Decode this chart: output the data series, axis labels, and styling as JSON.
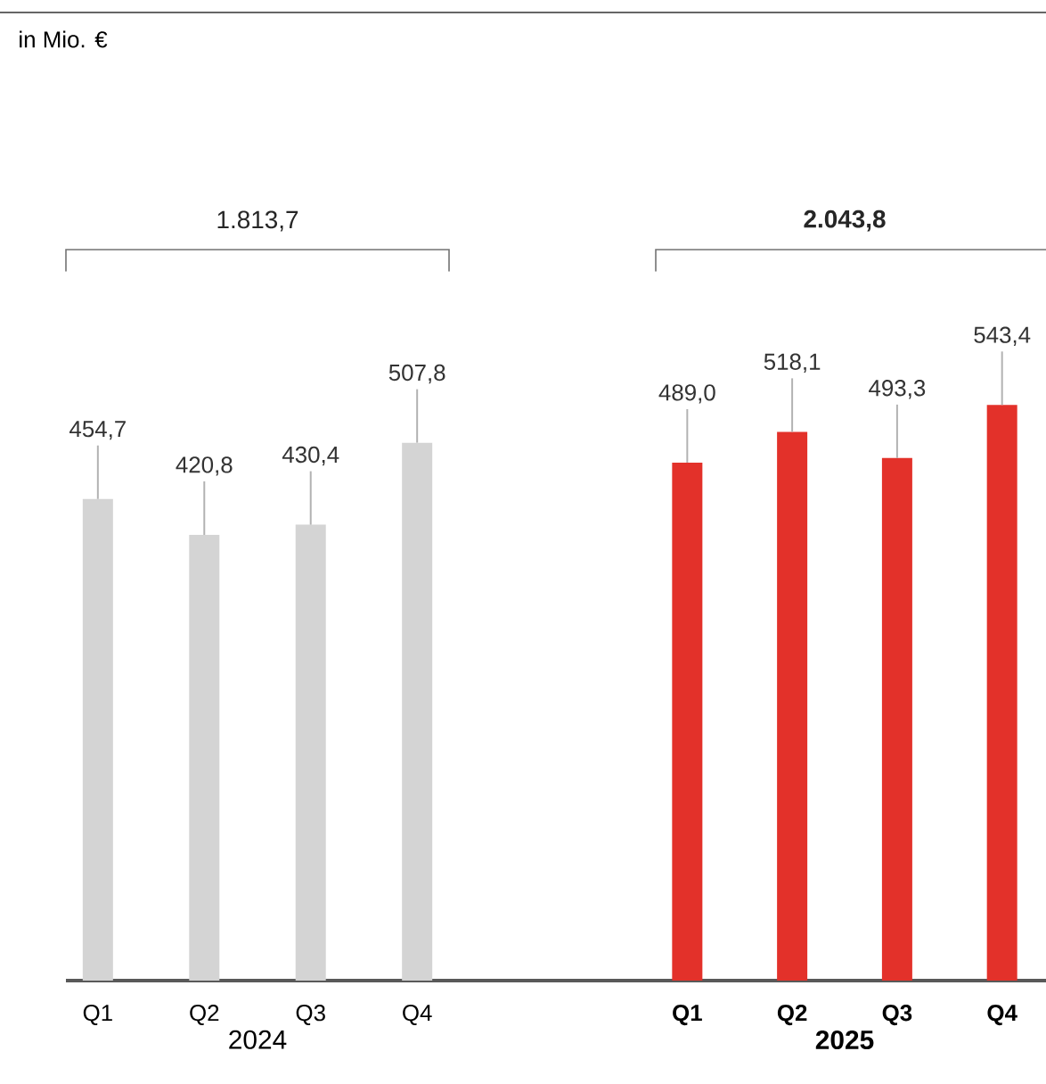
{
  "chart_data": [
    {
      "type": "bar",
      "title": "in Mio. €",
      "categories": [
        "Q1",
        "Q2",
        "Q3",
        "Q4"
      ],
      "values": [
        454.7,
        420.8,
        430.4,
        507.8
      ],
      "color": "#d4d4d4",
      "value_labels": [
        "454,7",
        "420,8",
        "430,4",
        "507,8"
      ],
      "xlabel": "2024",
      "annotations": [
        "1.813,7"
      ]
    },
    {
      "type": "bar",
      "categories": [
        "Q1",
        "Q2",
        "Q3",
        "Q4"
      ],
      "values": [
        489.0,
        518.1,
        493.3,
        543.4
      ],
      "color": "#e3312a",
      "value_labels": [
        "489,0",
        "518,1",
        "493,3",
        "543,4"
      ],
      "xlabel": "2025",
      "annotations": [
        "2.043,8"
      ]
    }
  ]
}
